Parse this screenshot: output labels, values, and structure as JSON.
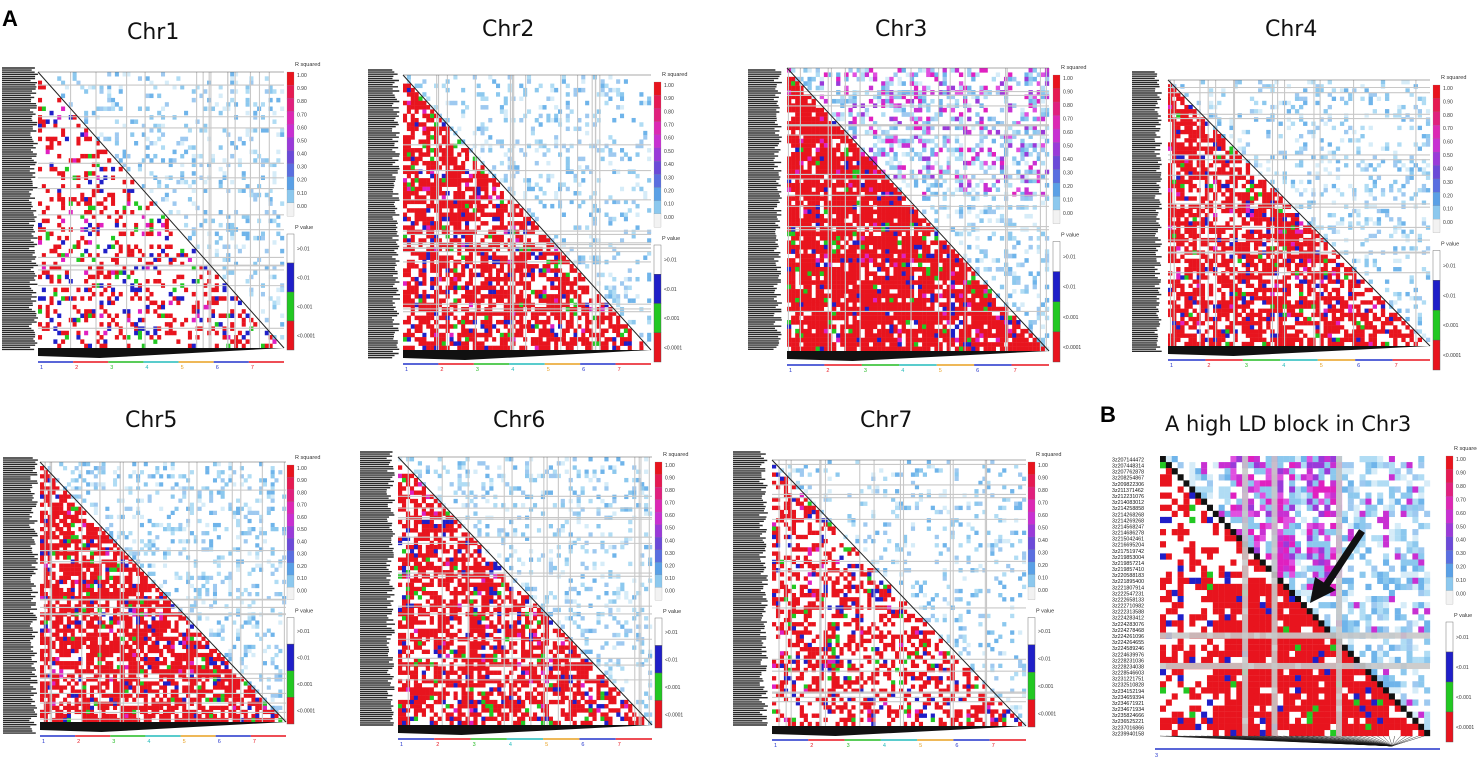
{
  "figure": {
    "panel_a_label": "A",
    "panel_b_label": "B",
    "panel_b_title": "A high LD block in Chr3"
  },
  "legend": {
    "r_title": "R squared",
    "r_ticks": [
      "1.00",
      "0.90",
      "0.80",
      "0.70",
      "0.60",
      "0.50",
      "0.40",
      "0.30",
      "0.20",
      "0.10",
      "0.00"
    ],
    "r_colors": [
      "#e8141e",
      "#e51a52",
      "#e0207d",
      "#dc28b4",
      "#c830d2",
      "#9a3ad9",
      "#6b4ad8",
      "#5a6ee0",
      "#5aa0e6",
      "#8cc8ee",
      "#f2f2f2"
    ],
    "p_title": "P value",
    "p_ticks": [
      ">0.01",
      "<0.01",
      "<0.001",
      "<0.0001"
    ],
    "p_colors": [
      "#ffffff",
      "#1f1fc8",
      "#22c822",
      "#e8141e"
    ]
  },
  "axis_colors": [
    "#2233cc",
    "#e8141e",
    "#22bb22",
    "#22bbbb",
    "#e8a020",
    "#2233cc",
    "#e8141e"
  ],
  "chart_data": [
    {
      "type": "heatmap",
      "name": "Chr1",
      "title": "Chr1",
      "chromosome_ticks": [
        "1",
        "2",
        "3",
        "4",
        "5",
        "6",
        "7"
      ],
      "density": 0.3,
      "red_fraction": 0.18,
      "blue_fraction": 0.55
    },
    {
      "type": "heatmap",
      "name": "Chr2",
      "title": "Chr2",
      "chromosome_ticks": [
        "1",
        "2",
        "3",
        "4",
        "5",
        "6",
        "7"
      ],
      "density": 0.4,
      "red_fraction": 0.55,
      "blue_fraction": 0.45
    },
    {
      "type": "heatmap",
      "name": "Chr3",
      "title": "Chr3",
      "chromosome_ticks": [
        "1",
        "2",
        "3",
        "4",
        "5",
        "6",
        "7"
      ],
      "density": 0.45,
      "red_fraction": 0.75,
      "blue_fraction": 0.6
    },
    {
      "type": "heatmap",
      "name": "Chr4",
      "title": "Chr4",
      "chromosome_ticks": [
        "1",
        "2",
        "3",
        "4",
        "5",
        "6",
        "7"
      ],
      "density": 0.38,
      "red_fraction": 0.55,
      "blue_fraction": 0.55
    },
    {
      "type": "heatmap",
      "name": "Chr5",
      "title": "Chr5",
      "chromosome_ticks": [
        "1",
        "2",
        "3",
        "4",
        "5",
        "6",
        "7"
      ],
      "density": 0.42,
      "red_fraction": 0.6,
      "blue_fraction": 0.55
    },
    {
      "type": "heatmap",
      "name": "Chr6",
      "title": "Chr6",
      "chromosome_ticks": [
        "1",
        "2",
        "3",
        "4",
        "5",
        "6",
        "7"
      ],
      "density": 0.4,
      "red_fraction": 0.5,
      "blue_fraction": 0.5
    },
    {
      "type": "heatmap",
      "name": "Chr7",
      "title": "Chr7",
      "chromosome_ticks": [
        "1",
        "2",
        "3",
        "4",
        "5",
        "6",
        "7"
      ],
      "density": 0.32,
      "red_fraction": 0.35,
      "blue_fraction": 0.5
    },
    {
      "type": "heatmap",
      "name": "high-ld-block-chr3",
      "title": "A high LD block in Chr3",
      "markers": [
        "3z207144472",
        "3z207448314",
        "3z207762878",
        "3z208254867",
        "3z209822306",
        "3z211371462",
        "3z212231076",
        "3z214083012",
        "3z214258858",
        "3z214268268",
        "3z214269268",
        "3z214568247",
        "3z214686278",
        "3z215042461",
        "3z216695204",
        "3z217519742",
        "3z219853004",
        "3z219857214",
        "3z219857410",
        "3z220588183",
        "3z221895400",
        "3z221807914",
        "3z222547231",
        "3z222658133",
        "3z222710982",
        "3z222313588",
        "3z224283412",
        "3z224283076",
        "3z224278468",
        "3z224261096",
        "3z224264655",
        "3z224589246",
        "3z224639976",
        "3z228231036",
        "3z228234038",
        "3z228546603",
        "3z231221751",
        "3z232510828",
        "3z234152194",
        "3z234659394",
        "3z234671921",
        "3z234671934",
        "3z235824666",
        "3z236525221",
        "3z237016866",
        "3z239940158"
      ],
      "axis_tick": "3"
    }
  ]
}
